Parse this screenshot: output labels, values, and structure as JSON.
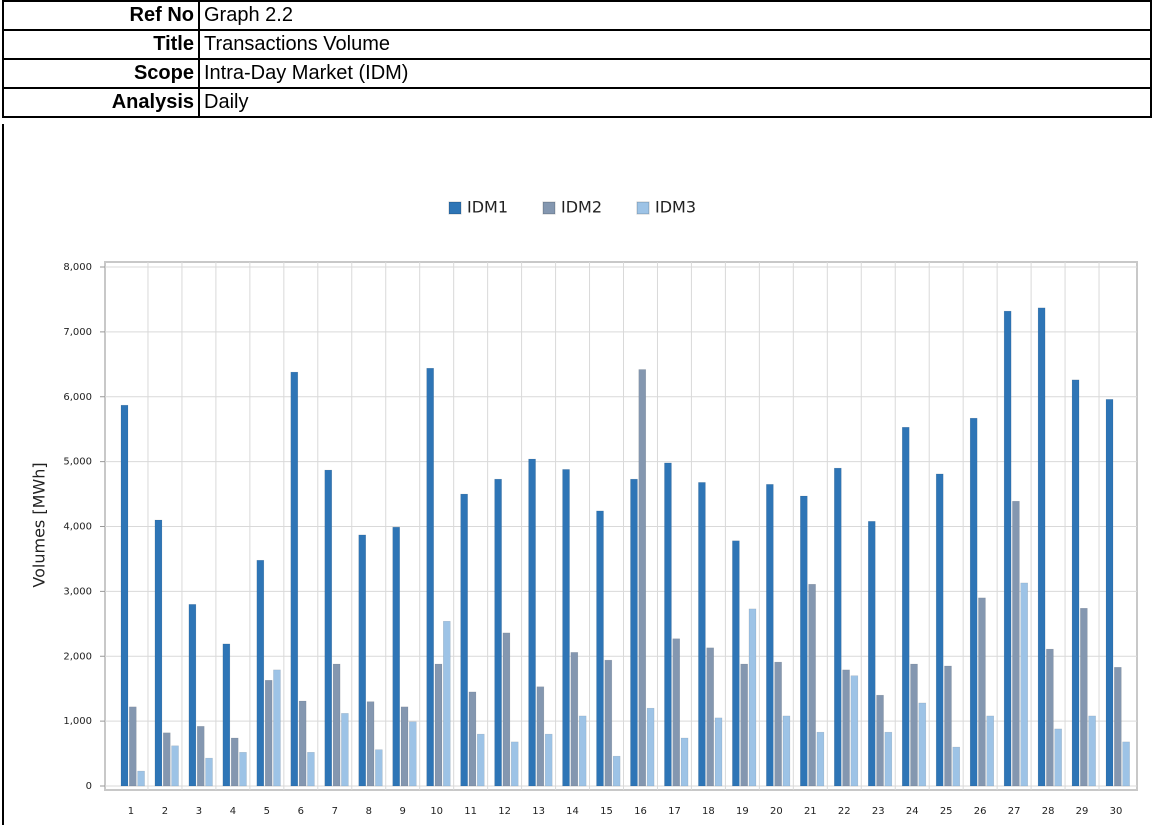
{
  "header": {
    "rows": [
      [
        "Ref No",
        "Graph 2.2"
      ],
      [
        "Title",
        "Transactions Volume"
      ],
      [
        "Scope",
        "Intra-Day Market (IDM)"
      ],
      [
        "Analysis",
        "Daily"
      ]
    ]
  },
  "chart_data": {
    "type": "bar",
    "y_label": "Volumes [MWh]",
    "categories": [
      "1",
      "2",
      "3",
      "4",
      "5",
      "6",
      "7",
      "8",
      "9",
      "10",
      "11",
      "12",
      "13",
      "14",
      "15",
      "16",
      "17",
      "18",
      "19",
      "20",
      "21",
      "22",
      "23",
      "24",
      "25",
      "26",
      "27",
      "28",
      "29",
      "30"
    ],
    "series": [
      {
        "name": "IDM1",
        "color": "#2e75b6",
        "values": [
          5870,
          4100,
          2800,
          2190,
          3480,
          6380,
          4870,
          3870,
          3990,
          6440,
          4500,
          4730,
          5040,
          4880,
          4240,
          4730,
          4980,
          4680,
          3780,
          4650,
          4470,
          4900,
          4080,
          5530,
          4810,
          5670,
          7320,
          7370,
          6260,
          5960
        ]
      },
      {
        "name": "IDM2",
        "color": "#8497b0",
        "values": [
          1220,
          820,
          920,
          740,
          1630,
          1310,
          1880,
          1300,
          1220,
          1880,
          1450,
          2360,
          1530,
          2060,
          1940,
          6420,
          2270,
          2130,
          1880,
          1910,
          3110,
          1790,
          1400,
          1880,
          1850,
          2900,
          4390,
          2110,
          2740,
          1830
        ]
      },
      {
        "name": "IDM3",
        "color": "#9dc3e6",
        "values": [
          230,
          620,
          430,
          520,
          1790,
          520,
          1120,
          560,
          990,
          2540,
          800,
          680,
          800,
          1080,
          460,
          1200,
          740,
          1050,
          2730,
          1080,
          830,
          1700,
          830,
          1280,
          600,
          1080,
          3130,
          880,
          1080,
          680
        ]
      }
    ],
    "ylim": [
      0,
      8000
    ],
    "yticks": [
      0,
      {
        "value": 1000,
        "label": "1,000"
      },
      {
        "value": 2000,
        "label": "2,000"
      },
      {
        "value": 3000,
        "label": "3,000"
      },
      {
        "value": 4000,
        "label": "4,000"
      },
      {
        "value": 5000,
        "label": "5,000"
      },
      {
        "value": 6000,
        "label": "6,000"
      },
      {
        "value": 7000,
        "label": "7,000"
      },
      {
        "value": 8000,
        "label": "8,000"
      }
    ],
    "grid": true,
    "legend": "top"
  }
}
